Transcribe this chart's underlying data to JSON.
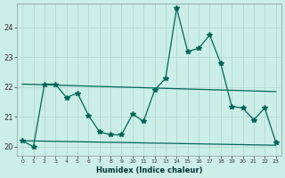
{
  "xlabel": "Humidex (Indice chaleur)",
  "background_color": "#cceee8",
  "grid_color": "#b0d8d0",
  "line_color": "#006655",
  "xlim": [
    -0.5,
    23.5
  ],
  "ylim": [
    19.7,
    24.8
  ],
  "xticks": [
    0,
    1,
    2,
    3,
    4,
    5,
    6,
    7,
    8,
    9,
    10,
    11,
    12,
    13,
    14,
    15,
    16,
    17,
    18,
    19,
    20,
    21,
    22,
    23
  ],
  "yticks": [
    20,
    21,
    22,
    23,
    24
  ],
  "data_x": [
    0,
    1,
    2,
    3,
    4,
    5,
    6,
    7,
    8,
    9,
    10,
    11,
    12,
    13,
    14,
    15,
    16,
    17,
    18,
    19,
    20,
    21,
    22,
    23
  ],
  "data_y": [
    20.2,
    20.0,
    22.1,
    22.1,
    21.65,
    21.8,
    21.05,
    20.5,
    20.4,
    20.4,
    21.1,
    20.85,
    21.9,
    22.3,
    24.65,
    23.2,
    23.3,
    23.75,
    22.8,
    21.35,
    21.3,
    20.9,
    21.3,
    20.15
  ],
  "trend1_x": [
    0,
    23
  ],
  "trend1_y": [
    22.1,
    21.85
  ],
  "trend2_x": [
    0,
    23
  ],
  "trend2_y": [
    20.2,
    20.05
  ],
  "marker_style": "*",
  "marker_size": 4
}
